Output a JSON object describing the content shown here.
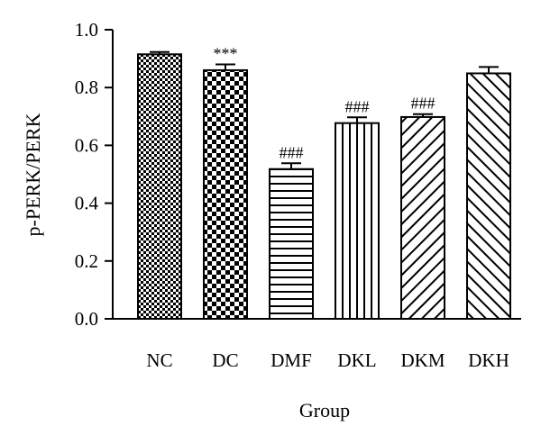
{
  "chart_data": {
    "type": "bar",
    "title": "",
    "xlabel": "Group",
    "ylabel": "p-PERK/PERK",
    "ylim": [
      0,
      1.0
    ],
    "yticks": [
      "0.0",
      "0.2",
      "0.4",
      "0.6",
      "0.8",
      "1.0"
    ],
    "categories": [
      "NC",
      "DC",
      "DMF",
      "DKL",
      "DKM",
      "DKH"
    ],
    "values": [
      0.915,
      0.86,
      0.518,
      0.677,
      0.698,
      0.849
    ],
    "errors": [
      0.008,
      0.02,
      0.02,
      0.02,
      0.01,
      0.022
    ],
    "annotations": [
      "",
      "***",
      "###",
      "###",
      "###",
      ""
    ],
    "patterns": [
      "fine-check",
      "coarse-check",
      "horizontal-lines",
      "vertical-lines",
      "diagonal-lines",
      "reverse-diagonal-lines"
    ],
    "bar_color": "#000000",
    "grid": false,
    "legend": "none"
  }
}
